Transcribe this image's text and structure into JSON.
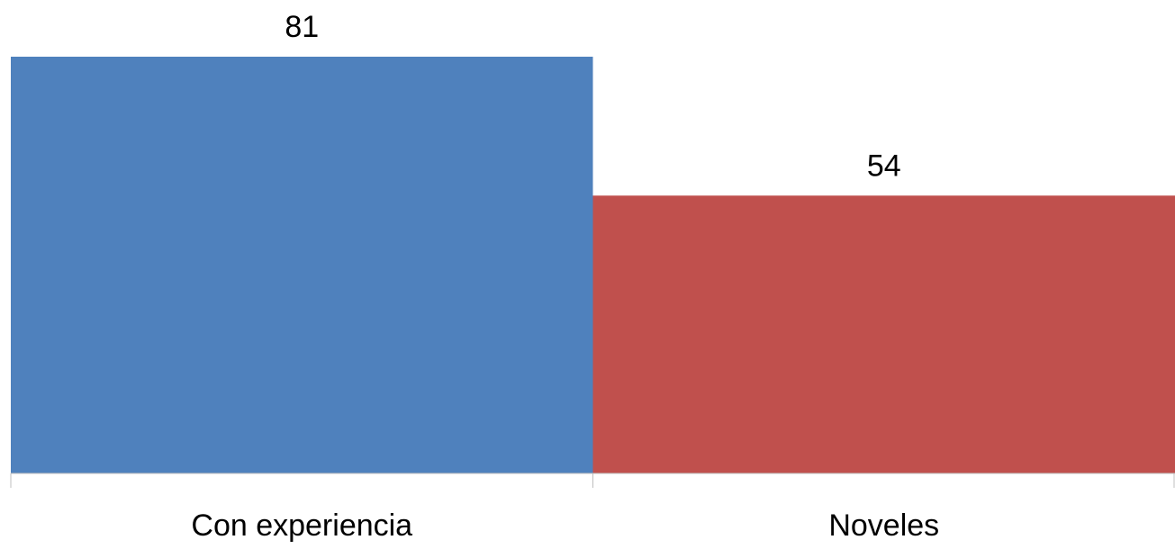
{
  "chart_data": {
    "type": "bar",
    "categories": [
      "Con experiencia",
      "Noveles"
    ],
    "values": [
      81,
      54
    ],
    "colors": [
      "#4f81bd",
      "#c0504d"
    ],
    "data_labels": [
      "81",
      "54"
    ],
    "title": "",
    "xlabel": "",
    "ylabel": "",
    "ylim": [
      0,
      81
    ],
    "grid": false,
    "legend": "none"
  }
}
